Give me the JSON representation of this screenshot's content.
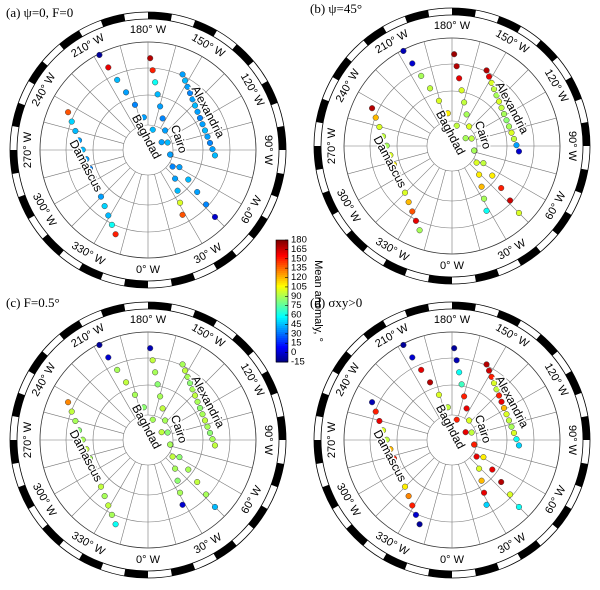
{
  "chart_data": {
    "type": "polar-tracks",
    "longitude_labels": [
      "180° W",
      "150° W",
      "120° W",
      "90° W",
      "60° W",
      "30° W",
      "0° W",
      "330° W",
      "300° W",
      "270° W",
      "240° W",
      "210° W"
    ],
    "colorbar": {
      "label": "Mean anomaly, °",
      "colormap": "jet",
      "lim": [
        -15,
        180
      ],
      "ticks": [
        -15,
        0,
        15,
        30,
        45,
        60,
        75,
        90,
        105,
        120,
        135,
        150,
        165,
        180
      ]
    },
    "panels": [
      {
        "title": "(a) ψ=0, F=0",
        "tracks": [
          {
            "name": "Damascus",
            "values": [
              140,
              50,
              45,
              40,
              45,
              40,
              35,
              40,
              45,
              40,
              50,
              45,
              60,
              150
            ]
          },
          {
            "name": "Baghdad",
            "values": [
              -10,
              160,
              45,
              40,
              35,
              40,
              45,
              40,
              35,
              40,
              45,
              40,
              35,
              0
            ]
          },
          {
            "name": "Cairo",
            "values": [
              170,
              150,
              60,
              45,
              40,
              35,
              40,
              45,
              40,
              35,
              40,
              45,
              100,
              140
            ]
          },
          {
            "name": "Alexandria",
            "values": [
              40,
              45,
              40,
              35,
              40,
              45,
              40,
              35,
              40,
              45,
              40,
              35,
              40,
              45
            ]
          }
        ]
      },
      {
        "title": "(b) ψ=45°",
        "tracks": [
          {
            "name": "Damascus",
            "values": [
              170,
              120,
              100,
              95,
              90,
              100,
              110,
              95,
              90,
              100,
              120,
              140,
              160,
              90
            ]
          },
          {
            "name": "Baghdad",
            "values": [
              -5,
              0,
              90,
              95,
              100,
              110,
              95,
              90,
              100,
              95,
              110,
              150,
              165,
              100
            ]
          },
          {
            "name": "Cairo",
            "values": [
              175,
              170,
              160,
              100,
              95,
              90,
              100,
              95,
              90,
              100,
              110,
              120,
              90,
              60
            ]
          },
          {
            "name": "Alexandria",
            "values": [
              170,
              160,
              100,
              95,
              90,
              100,
              95,
              90,
              85,
              90,
              100,
              95,
              40,
              0
            ]
          }
        ]
      },
      {
        "title": "(c) F=0.5°",
        "tracks": [
          {
            "name": "Damascus",
            "values": [
              130,
              95,
              90,
              85,
              90,
              95,
              90,
              85,
              90,
              95,
              90,
              95,
              90,
              60
            ]
          },
          {
            "name": "Baghdad",
            "values": [
              -10,
              0,
              90,
              95,
              90,
              85,
              90,
              95,
              90,
              85,
              90,
              95,
              90,
              45
            ]
          },
          {
            "name": "Cairo",
            "values": [
              -5,
              95,
              90,
              85,
              90,
              95,
              90,
              85,
              90,
              95,
              90,
              85,
              90,
              0
            ]
          },
          {
            "name": "Alexandria",
            "values": [
              90,
              95,
              90,
              85,
              90,
              95,
              90,
              85,
              90,
              95,
              90,
              85,
              90,
              95
            ]
          }
        ]
      },
      {
        "title": "(d) σxy>0",
        "tracks": [
          {
            "name": "Damascus",
            "values": [
              -5,
              150,
              160,
              100,
              95,
              120,
              150,
              160,
              100,
              110,
              130,
              150,
              0,
              -10
            ]
          },
          {
            "name": "Baghdad",
            "values": [
              -10,
              0,
              160,
              170,
              100,
              95,
              150,
              160,
              100,
              110,
              160,
              170,
              100,
              60
            ]
          },
          {
            "name": "Cairo",
            "values": [
              -10,
              -5,
              60,
              70,
              150,
              160,
              100,
              95,
              150,
              160,
              100,
              120,
              160,
              50
            ]
          },
          {
            "name": "Alexandria",
            "values": [
              170,
              165,
              150,
              100,
              95,
              150,
              160,
              120,
              100,
              95,
              90,
              100,
              60,
              50
            ]
          }
        ]
      }
    ]
  }
}
